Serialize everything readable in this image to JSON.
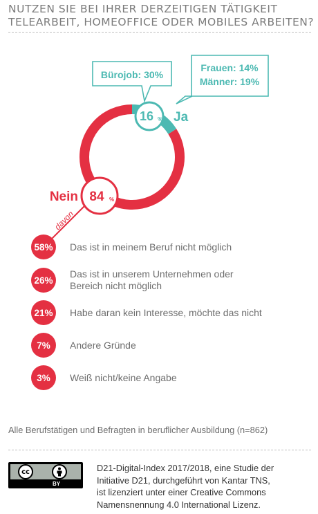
{
  "title": {
    "line1": "NUTZEN SIE BEI IHRER DERZEITIGEN TÄTIGKEIT",
    "line2": "TELEARBEIT, HOMEOFFICE ODER MOBILES ARBEITEN?"
  },
  "colors": {
    "yes": "#4cb9b2",
    "no": "#e43042",
    "text": "#6d6d6d",
    "title": "#7b7b7b"
  },
  "chart_data": {
    "type": "pie",
    "title": "NUTZEN SIE BEI IHRER DERZEITIGEN TÄTIGKEIT TELEARBEIT, HOMEOFFICE ODER MOBILES ARBEITEN?",
    "slices": [
      {
        "label": "Ja",
        "value": 16,
        "display": "16",
        "unit": "%"
      },
      {
        "label": "Nein",
        "value": 84,
        "display": "84",
        "unit": "%"
      }
    ],
    "callouts": {
      "buero": "Bürojob: 30%",
      "frauen": "Frauen: 14%",
      "maenner": "Männer: 19%"
    },
    "davon_label": "davon",
    "reasons": [
      {
        "value": 58,
        "label": "58%",
        "text": "Das ist in meinem Beruf nicht möglich"
      },
      {
        "value": 26,
        "label": "26%",
        "text": "Das ist in unserem Unternehmen oder Bereich nicht möglich"
      },
      {
        "value": 21,
        "label": "21%",
        "text": "Habe daran kein Interesse, möchte das nicht"
      },
      {
        "value": 7,
        "label": "7%",
        "text": "Andere Gründe"
      },
      {
        "value": 3,
        "label": "3%",
        "text": "Weiß nicht/keine Angabe"
      }
    ]
  },
  "footnote": "Alle Berufstätigen und Befragten in beruflicher Ausbildung (n=862)",
  "license_lines": [
    "D21-Digital-Index 2017/2018, eine Studie der",
    "Initiative D21, durchgeführt von Kantar TNS,",
    "ist lizenziert unter einer Creative Commons",
    "Namensnennung 4.0 International Lizenz."
  ],
  "cc_badge": {
    "cc": "cc",
    "by": "BY"
  }
}
